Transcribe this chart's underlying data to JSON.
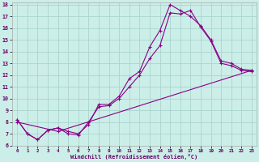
{
  "xlabel": "Windchill (Refroidissement éolien,°C)",
  "background_color": "#cceee8",
  "grid_color": "#aad4ce",
  "line_color": "#880088",
  "xlim": [
    -0.5,
    23.5
  ],
  "ylim": [
    6,
    18.2
  ],
  "xticks": [
    0,
    1,
    2,
    3,
    4,
    5,
    6,
    7,
    8,
    9,
    10,
    11,
    12,
    13,
    14,
    15,
    16,
    17,
    18,
    19,
    20,
    21,
    22,
    23
  ],
  "yticks": [
    6,
    7,
    8,
    9,
    10,
    11,
    12,
    13,
    14,
    15,
    16,
    17,
    18
  ],
  "series1_x": [
    0,
    1,
    2,
    3,
    4,
    5,
    6,
    7,
    8,
    9,
    10,
    11,
    12,
    13,
    14,
    15,
    16,
    17,
    18,
    19,
    20,
    21,
    22,
    23
  ],
  "series1_y": [
    8.2,
    7.0,
    6.5,
    7.3,
    7.5,
    7.2,
    7.0,
    7.8,
    9.5,
    9.5,
    10.2,
    11.7,
    12.3,
    14.4,
    15.8,
    18.0,
    17.5,
    17.0,
    16.2,
    15.0,
    13.2,
    13.0,
    12.5,
    12.4
  ],
  "series2_x": [
    0,
    1,
    2,
    3,
    4,
    5,
    6,
    7,
    8,
    9,
    10,
    11,
    12,
    13,
    14,
    15,
    16,
    17,
    18,
    19,
    20,
    21,
    22,
    23
  ],
  "series2_y": [
    8.2,
    7.0,
    6.5,
    7.3,
    7.5,
    7.0,
    6.9,
    8.0,
    9.3,
    9.4,
    10.0,
    11.0,
    12.0,
    13.4,
    14.5,
    17.3,
    17.2,
    17.5,
    16.1,
    14.9,
    13.0,
    12.8,
    12.4,
    12.3
  ],
  "series3_x": [
    0,
    4,
    23
  ],
  "series3_y": [
    8.0,
    7.2,
    12.4
  ]
}
